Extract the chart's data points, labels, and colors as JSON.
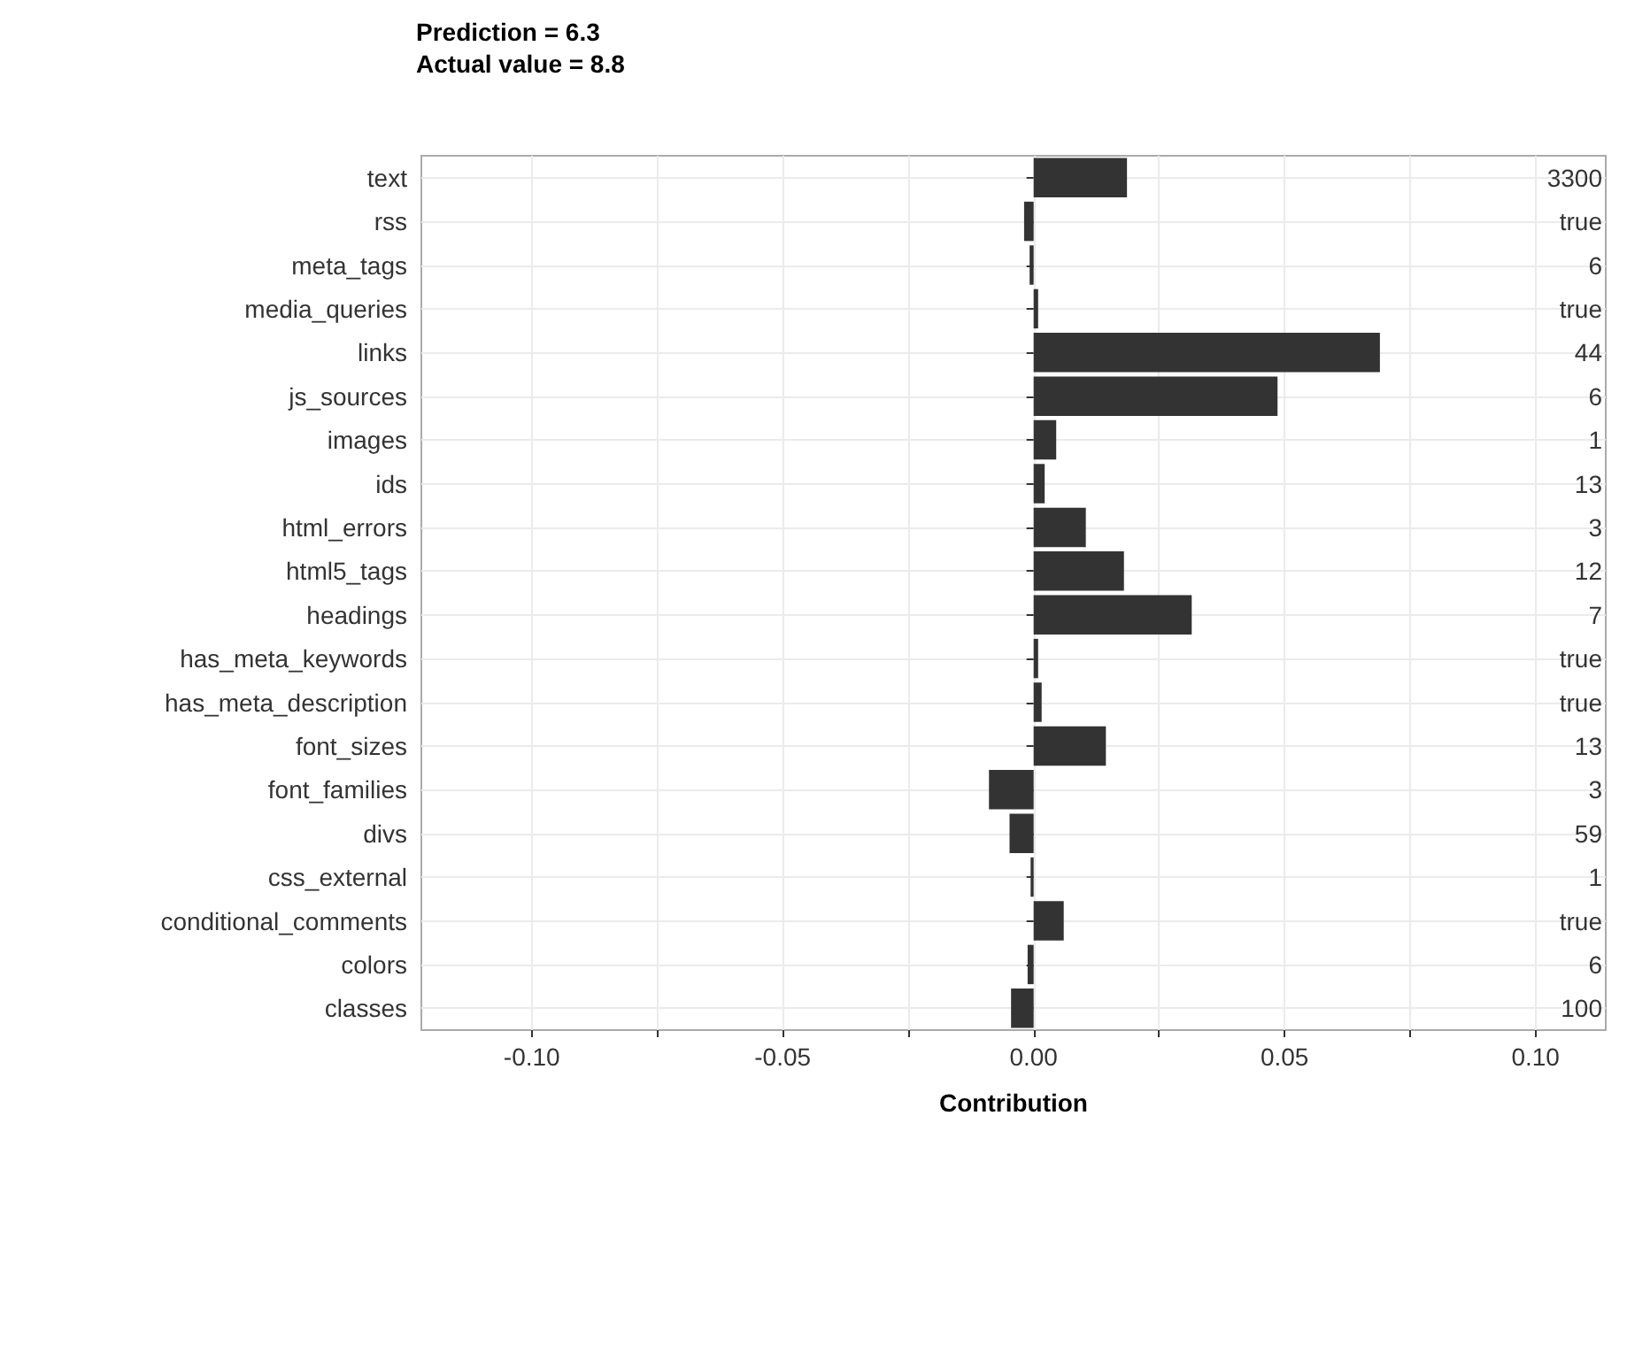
{
  "chart_data": {
    "type": "bar",
    "orientation": "horizontal",
    "title": "Prediction = 6.3",
    "subtitle": "Actual value = 8.8",
    "xlabel": "Contribution",
    "categories": [
      "text",
      "rss",
      "meta_tags",
      "media_queries",
      "links",
      "js_sources",
      "images",
      "ids",
      "html_errors",
      "html5_tags",
      "headings",
      "has_meta_keywords",
      "has_meta_description",
      "font_sizes",
      "font_families",
      "divs",
      "css_external",
      "conditional_comments",
      "colors",
      "classes"
    ],
    "values": [
      0.0186,
      -0.0019,
      -0.0008,
      0.0009,
      0.069,
      0.0486,
      0.0045,
      0.0022,
      0.0104,
      0.018,
      0.0315,
      0.0009,
      0.0016,
      0.0144,
      -0.0089,
      -0.0048,
      -0.0006,
      0.006,
      -0.0012,
      -0.0045
    ],
    "color": "#333333",
    "xlim": [
      -0.122,
      0.114
    ],
    "xticks": [
      {
        "value": -0.1,
        "label": "-0.10"
      },
      {
        "value": -0.075,
        "label": null
      },
      {
        "value": -0.05,
        "label": "-0.05"
      },
      {
        "value": -0.025,
        "label": null
      },
      {
        "value": 0,
        "label": "0.00"
      },
      {
        "value": 0.025,
        "label": null
      },
      {
        "value": 0.05,
        "label": "0.05"
      },
      {
        "value": 0.075,
        "label": null
      },
      {
        "value": 0.1,
        "label": "0.10"
      }
    ],
    "annotations": [
      "3300",
      "true",
      "6",
      "true",
      "44",
      "6",
      "1",
      "13",
      "3",
      "12",
      "7",
      "true",
      "true",
      "13",
      "3",
      "59",
      "1",
      "true",
      "6",
      "100"
    ],
    "grid": true
  }
}
